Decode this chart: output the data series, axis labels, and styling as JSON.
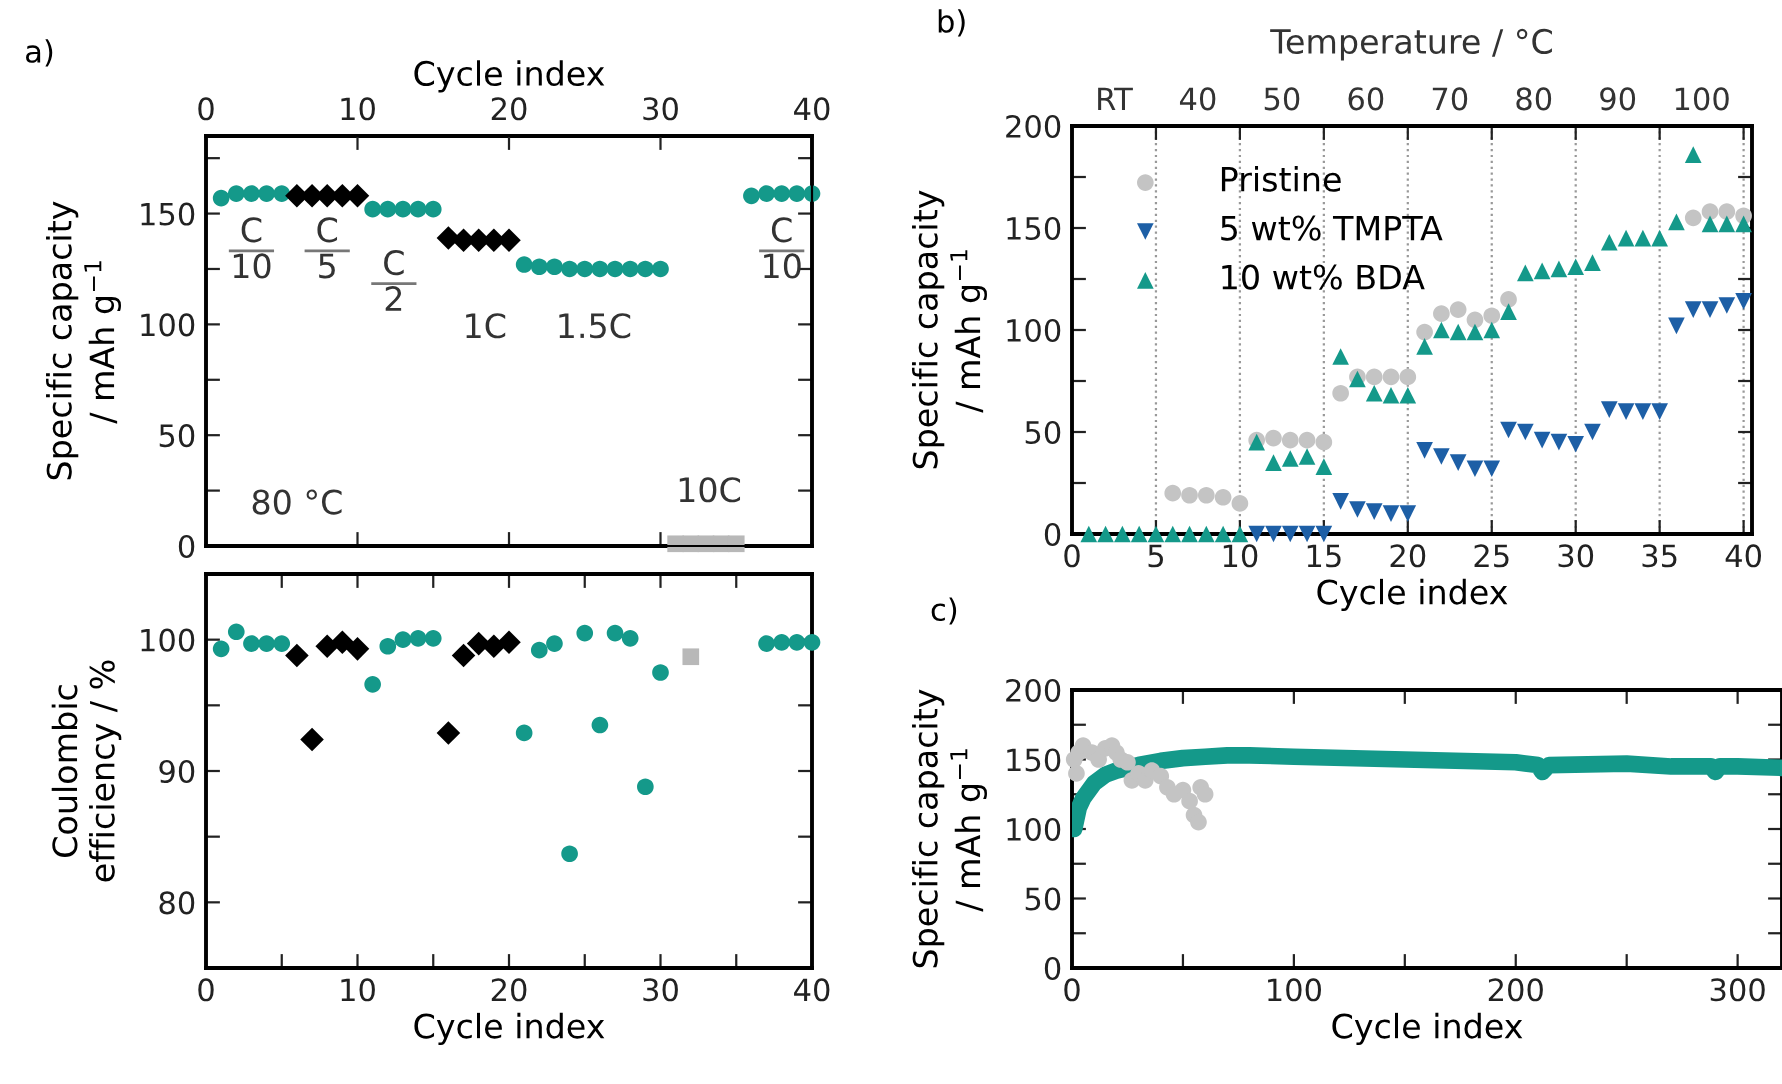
{
  "chart_data": [
    {
      "type": "scatter",
      "ylabel": "Specific capacity\n/ mAh g$^{−1}$",
      "x2label": "Cycle index",
      "xlim": [
        0,
        40
      ],
      "xticks": [
        {
          "value": 0,
          "label": null
        },
        {
          "value": 10,
          "label": null
        },
        {
          "value": 20,
          "label": null
        },
        {
          "value": 30,
          "label": null
        },
        {
          "value": 40,
          "label": null
        }
      ],
      "x2lim": [
        0,
        40
      ],
      "x2ticks": [
        0,
        10,
        20,
        30,
        40
      ],
      "ylim": [
        0,
        185
      ],
      "yticks": [
        0,
        {
          "value": 25,
          "label": null
        },
        50,
        {
          "value": 75,
          "label": null
        },
        100,
        {
          "value": 125,
          "label": null
        },
        150,
        {
          "value": 175,
          "label": null
        }
      ],
      "tick_labels": "y",
      "grid": false,
      "legend": false,
      "series": [
        {
          "color": "#14998a",
          "marker": "circle",
          "x": [
            1,
            2,
            3,
            4,
            5,
            11,
            12,
            13,
            14,
            15,
            21,
            22,
            23,
            24,
            25,
            26,
            27,
            28,
            29,
            30,
            36,
            37,
            38,
            39,
            40
          ],
          "values": [
            157,
            159,
            159,
            159,
            159,
            152,
            152,
            152,
            152,
            152,
            127,
            126,
            126,
            125,
            125,
            125,
            125,
            125,
            125,
            125,
            158,
            159,
            159,
            159,
            159
          ]
        },
        {
          "color": "#000000",
          "marker": "diamond",
          "x": [
            6,
            7,
            8,
            9,
            10,
            16,
            17,
            18,
            19,
            20
          ],
          "values": [
            158,
            158,
            158,
            158,
            158,
            139,
            138,
            138,
            138,
            138
          ]
        },
        {
          "color": "#b8b8b8",
          "marker": "square",
          "x": [
            31,
            32,
            33,
            34,
            35
          ],
          "values": [
            1,
            1,
            1,
            1,
            1
          ]
        }
      ],
      "annotations": [
        "a)",
        "C\n10",
        "C\n5",
        "C\n2",
        "1C",
        "1.5C",
        "C\n10",
        "80 °C",
        "10C"
      ]
    },
    {
      "type": "scatter",
      "ylabel": "Coulombic\nefficiency / %",
      "xlabel": "Cycle index",
      "xlim": [
        0,
        40
      ],
      "xticks": [
        0,
        {
          "value": 5,
          "label": null
        },
        10,
        {
          "value": 15,
          "label": null
        },
        20,
        {
          "value": 25,
          "label": null
        },
        30,
        {
          "value": 35,
          "label": null
        },
        40
      ],
      "ylim": [
        75,
        105
      ],
      "yticks": [
        80,
        {
          "value": 85,
          "label": null
        },
        90,
        {
          "value": 95,
          "label": null
        },
        100
      ],
      "grid": false,
      "legend": false,
      "series": [
        {
          "color": "#14998a",
          "marker": "circle",
          "x": [
            1,
            2,
            3,
            4,
            5,
            11,
            12,
            13,
            14,
            15,
            21,
            22,
            23,
            24,
            25,
            26,
            27,
            28,
            29,
            30,
            37,
            38,
            39,
            40
          ],
          "values": [
            99.3,
            100.6,
            99.7,
            99.7,
            99.7,
            96.6,
            99.5,
            100,
            100.1,
            100.1,
            92.9,
            99.2,
            99.7,
            83.7,
            100.5,
            93.5,
            100.5,
            100.1,
            88.8,
            97.5,
            99.7,
            99.8,
            99.8,
            99.8
          ]
        },
        {
          "color": "#000000",
          "marker": "diamond",
          "x": [
            6,
            7,
            8,
            9,
            10,
            16,
            17,
            18,
            19,
            20
          ],
          "values": [
            98.8,
            92.4,
            99.5,
            99.8,
            99.3,
            92.9,
            98.8,
            99.7,
            99.5,
            99.8
          ]
        },
        {
          "color": "#b8b8b8",
          "marker": "square",
          "x": [
            32
          ],
          "values": [
            98.7
          ]
        }
      ]
    },
    {
      "type": "scatter",
      "ylabel": "Specific capacity\n/ mAh g$^{−1}$",
      "xlabel": "Cycle index",
      "xlim": [
        0,
        40.5
      ],
      "xticks": [
        0,
        5,
        10,
        15,
        20,
        25,
        30,
        35,
        40
      ],
      "ylim": [
        0,
        200
      ],
      "yticks": [
        0,
        {
          "value": 25,
          "label": null
        },
        50,
        {
          "value": 75,
          "label": null
        },
        100,
        {
          "value": 125,
          "label": null
        },
        150,
        {
          "value": 175,
          "label": null
        },
        200
      ],
      "grid": "x",
      "legend": "top left",
      "x": [
        1,
        2,
        3,
        4,
        5,
        6,
        7,
        8,
        9,
        10,
        11,
        12,
        13,
        14,
        15,
        16,
        17,
        18,
        19,
        20,
        21,
        22,
        23,
        24,
        25,
        26,
        27,
        28,
        29,
        30,
        31,
        32,
        33,
        34,
        35,
        36,
        37,
        38,
        39,
        40
      ],
      "series": [
        {
          "name": "Pristine",
          "color": "#c4c4c4",
          "marker": "circle",
          "values": [
            null,
            null,
            null,
            null,
            null,
            20,
            19,
            19,
            18,
            15,
            46,
            47,
            46,
            46,
            45,
            69,
            77,
            77,
            77,
            77,
            99,
            108,
            110,
            105,
            107,
            115,
            null,
            null,
            null,
            null,
            null,
            null,
            null,
            null,
            null,
            null,
            155,
            158,
            158,
            156
          ]
        },
        {
          "name": "5 wt% TMPTA",
          "color": "#1d5fa6",
          "marker": "triangle-down",
          "values": [
            null,
            null,
            null,
            null,
            null,
            null,
            null,
            null,
            null,
            null,
            0,
            0,
            0,
            0,
            0,
            16,
            12,
            11,
            10,
            10,
            41,
            38,
            35,
            32,
            32,
            51,
            50,
            46,
            45,
            44,
            50,
            61,
            60,
            60,
            60,
            102,
            110,
            110,
            112,
            114
          ]
        },
        {
          "name": "10 wt% BDA",
          "color": "#14998a",
          "marker": "triangle",
          "values": [
            0,
            0,
            0,
            0,
            0,
            0,
            0,
            0,
            0,
            0,
            45,
            35,
            37,
            38,
            33,
            87,
            76,
            69,
            68,
            68,
            92,
            100,
            99,
            99,
            100,
            109,
            128,
            129,
            130,
            131,
            133,
            143,
            145,
            145,
            145,
            153,
            186,
            152,
            152,
            152
          ]
        }
      ],
      "annotations": [
        "b)",
        "Temperature / °C",
        "RT",
        "40",
        "50",
        "60",
        "70",
        "80",
        "90",
        "100"
      ]
    },
    {
      "type": "scatter",
      "ylabel": "Specific capacity\n/ mAh g$^{−1}$",
      "xlabel": "Cycle index",
      "xlim": [
        0,
        320
      ],
      "xticks": [
        0,
        {
          "value": 50,
          "label": null
        },
        100,
        {
          "value": 150,
          "label": null
        },
        200,
        {
          "value": 250,
          "label": null
        },
        300
      ],
      "ylim": [
        0,
        200
      ],
      "yticks": [
        0,
        {
          "value": 25,
          "label": null
        },
        50,
        {
          "value": 75,
          "label": null
        },
        100,
        {
          "value": 125,
          "label": null
        },
        150,
        {
          "value": 175,
          "label": null
        },
        200
      ],
      "grid": false,
      "legend": false,
      "series": [
        {
          "color": "#c4c4c4",
          "marker": "circle",
          "x": [
            1,
            2,
            3,
            5,
            9,
            12,
            15,
            18,
            20,
            22,
            25,
            27,
            30,
            33,
            36,
            40,
            43,
            46,
            50,
            53,
            55,
            57,
            58,
            60
          ],
          "values": [
            150,
            140,
            155,
            160,
            155,
            150,
            158,
            160,
            155,
            150,
            148,
            135,
            140,
            135,
            142,
            138,
            130,
            125,
            128,
            120,
            110,
            105,
            130,
            125
          ]
        },
        {
          "type": "line",
          "color": "#14998a",
          "marker": "none",
          "x": [
            1,
            3,
            5,
            10,
            15,
            20,
            30,
            40,
            50,
            60,
            70,
            80,
            100,
            150,
            200,
            210,
            212,
            215,
            250,
            270,
            288,
            290,
            292,
            300,
            320
          ],
          "values": [
            100,
            115,
            122,
            133,
            139,
            142,
            146,
            149,
            151,
            152,
            153,
            153,
            152,
            150,
            148,
            146,
            141,
            146,
            147,
            145,
            145,
            141,
            145,
            145,
            144
          ]
        }
      ],
      "annotations": [
        "c)"
      ]
    }
  ]
}
